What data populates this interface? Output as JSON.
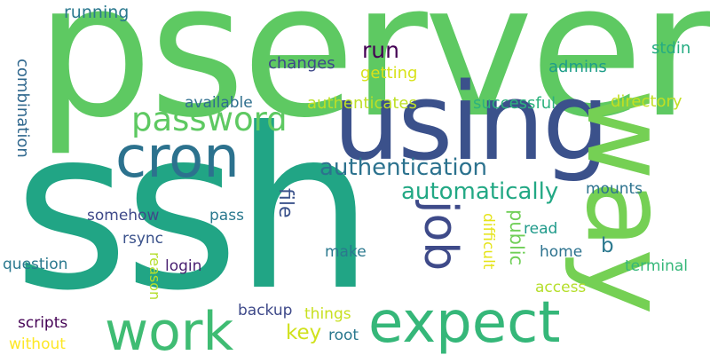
{
  "words": [
    {
      "id": "pserver",
      "text": "pserver",
      "color": "#5ec962"
    },
    {
      "id": "ssh",
      "text": "ssh",
      "color": "#21a585"
    },
    {
      "id": "using",
      "text": "using",
      "color": "#3b518b"
    },
    {
      "id": "way",
      "text": "way",
      "color": "#75d054"
    },
    {
      "id": "cron",
      "text": "cron",
      "color": "#2c728e"
    },
    {
      "id": "expect",
      "text": "expect",
      "color": "#35b779"
    },
    {
      "id": "work",
      "text": "work",
      "color": "#3fbc73"
    },
    {
      "id": "password",
      "text": "password",
      "color": "#5ec962"
    },
    {
      "id": "job",
      "text": "job",
      "color": "#3e4a89"
    },
    {
      "id": "authentication",
      "text": "authentication",
      "color": "#2c728e"
    },
    {
      "id": "automatically",
      "text": "automatically",
      "color": "#22a884"
    },
    {
      "id": "run",
      "text": "run",
      "color": "#440154"
    },
    {
      "id": "running",
      "text": "running",
      "color": "#2a788e"
    },
    {
      "id": "changes",
      "text": "changes",
      "color": "#3e4989"
    },
    {
      "id": "getting",
      "text": "getting",
      "color": "#d8e219"
    },
    {
      "id": "admins",
      "text": "admins",
      "color": "#1f9e89"
    },
    {
      "id": "stdin",
      "text": "stdin",
      "color": "#25ac82"
    },
    {
      "id": "combination",
      "text": "combination",
      "color": "#31688e"
    },
    {
      "id": "available",
      "text": "available",
      "color": "#2e6e8e"
    },
    {
      "id": "authenticates",
      "text": "authenticates",
      "color": "#bddf26"
    },
    {
      "id": "successful",
      "text": "successful",
      "color": "#2db27d"
    },
    {
      "id": "directory",
      "text": "directory",
      "color": "#c2df23"
    },
    {
      "id": "file",
      "text": "file",
      "color": "#3b528b"
    },
    {
      "id": "mounts",
      "text": "mounts",
      "color": "#2c728e"
    },
    {
      "id": "somehow",
      "text": "somehow",
      "color": "#3e4989"
    },
    {
      "id": "pass",
      "text": "pass",
      "color": "#2a788e"
    },
    {
      "id": "difficult",
      "text": "difficult",
      "color": "#e5e419"
    },
    {
      "id": "public",
      "text": "public",
      "color": "#70cf57"
    },
    {
      "id": "read",
      "text": "read",
      "color": "#1f9a8a"
    },
    {
      "id": "b",
      "text": "b",
      "color": "#2a788e"
    },
    {
      "id": "rsync",
      "text": "rsync",
      "color": "#3b528b"
    },
    {
      "id": "question",
      "text": "question",
      "color": "#2a788e"
    },
    {
      "id": "reason",
      "text": "reason",
      "color": "#b5de2b"
    },
    {
      "id": "login",
      "text": "login",
      "color": "#481f70"
    },
    {
      "id": "make",
      "text": "make",
      "color": "#2a788e"
    },
    {
      "id": "home",
      "text": "home",
      "color": "#2c728e"
    },
    {
      "id": "terminal",
      "text": "terminal",
      "color": "#35b779"
    },
    {
      "id": "access",
      "text": "access",
      "color": "#b5de2b"
    },
    {
      "id": "scripts",
      "text": "scripts",
      "color": "#440154"
    },
    {
      "id": "backup",
      "text": "backup",
      "color": "#3e4989"
    },
    {
      "id": "things",
      "text": "things",
      "color": "#c8e020"
    },
    {
      "id": "key",
      "text": "key",
      "color": "#d0e11c"
    },
    {
      "id": "root",
      "text": "root",
      "color": "#2a788e"
    },
    {
      "id": "without",
      "text": "without",
      "color": "#fde725"
    }
  ]
}
